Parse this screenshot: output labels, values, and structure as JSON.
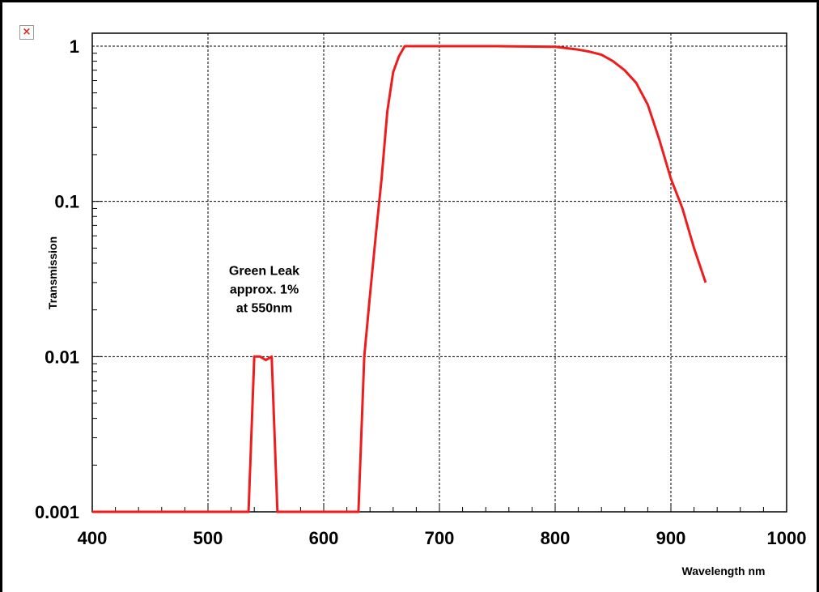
{
  "broken_image": {
    "glyph": "×",
    "icon": "broken-image-icon",
    "color": "#e0201b"
  },
  "chart_data": {
    "type": "line",
    "title": "",
    "xlabel": "Wavelength nm",
    "ylabel": "Transmission",
    "xlim": [
      400,
      1000
    ],
    "ylim": [
      0.001,
      1
    ],
    "yscale": "log",
    "grid": true,
    "x_ticks": [
      400,
      500,
      600,
      700,
      800,
      900,
      1000
    ],
    "x_tick_labels": [
      "400",
      "500",
      "600",
      "700",
      "800",
      "900",
      "1000"
    ],
    "y_ticks": [
      0.001,
      0.01,
      0.1,
      1
    ],
    "y_tick_labels": [
      "0.001",
      "0.01",
      "0.1",
      "1"
    ],
    "line_color": "#ee1c1c",
    "series": [
      {
        "x": [
          400,
          535,
          540,
          545,
          550,
          555,
          560,
          630,
          635,
          640,
          645,
          650,
          655,
          660,
          665,
          670,
          700,
          750,
          800,
          810,
          820,
          830,
          840,
          850,
          860,
          870,
          880,
          890,
          900,
          910,
          920,
          930
        ],
        "y": [
          0.001,
          0.001,
          0.01,
          0.01,
          0.0095,
          0.01,
          0.001,
          0.001,
          0.01,
          0.025,
          0.06,
          0.14,
          0.38,
          0.68,
          0.86,
          1.0,
          1.0,
          1.0,
          0.99,
          0.97,
          0.95,
          0.92,
          0.88,
          0.8,
          0.7,
          0.58,
          0.42,
          0.25,
          0.14,
          0.09,
          0.05,
          0.03
        ]
      }
    ],
    "annotations": [
      {
        "text": [
          "Green Leak",
          "approx. 1%",
          "at 550nm"
        ],
        "x": 550,
        "y": 0.024
      }
    ]
  }
}
